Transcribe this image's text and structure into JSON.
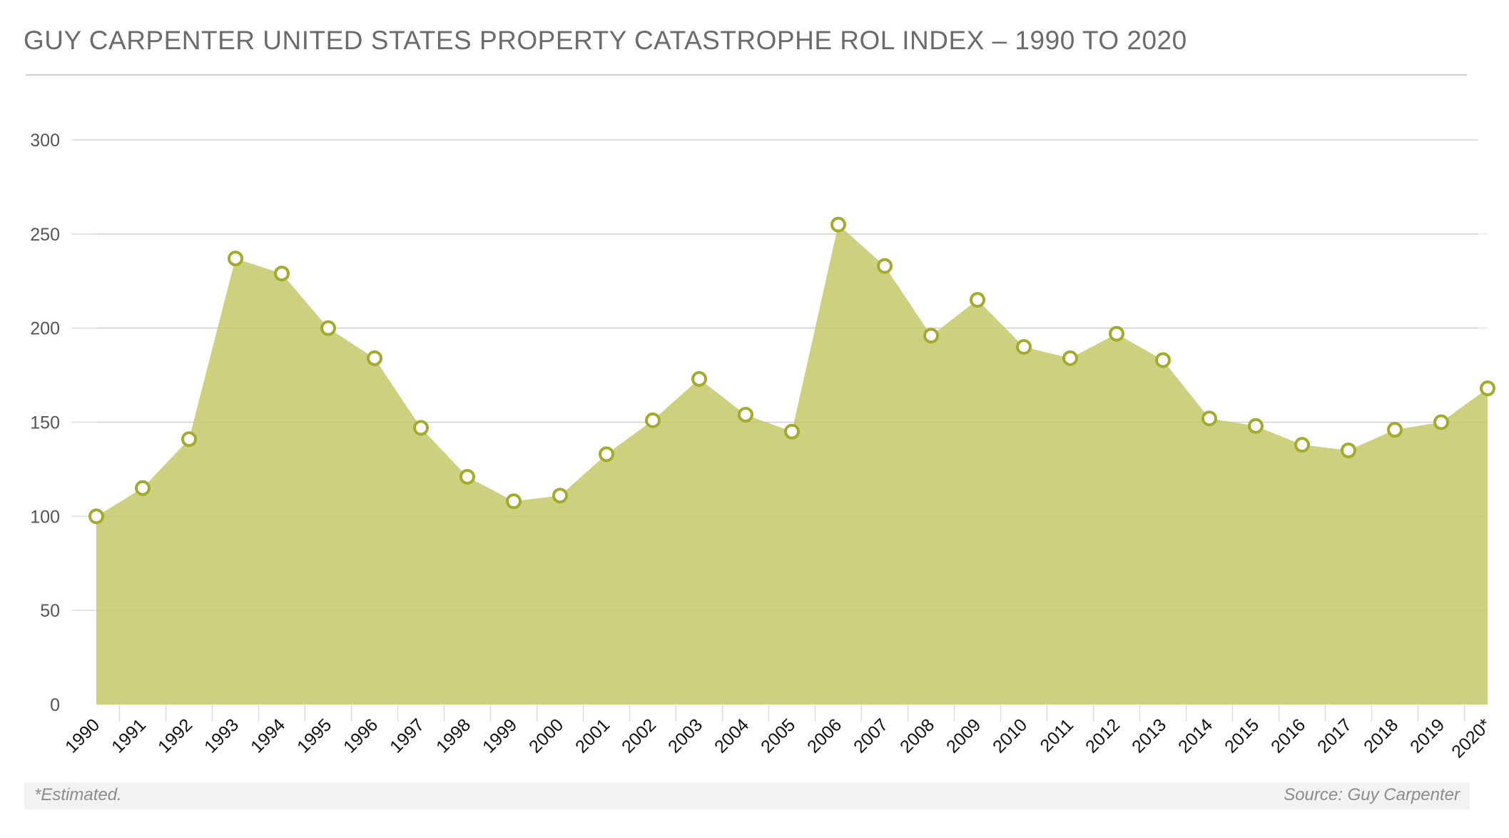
{
  "header": {
    "title": "GUY CARPENTER UNITED STATES PROPERTY CATASTROPHE ROL INDEX – 1990 TO 2020"
  },
  "footer": {
    "note": "*Estimated.",
    "source": "Source: Guy Carpenter"
  },
  "colors": {
    "area_fill": "#cdd17f",
    "marker_stroke": "#a3aa2c",
    "marker_fill": "#ffffff",
    "grid": "#e4e4e4"
  },
  "chart_data": {
    "type": "area",
    "title": "GUY CARPENTER UNITED STATES PROPERTY CATASTROPHE ROL INDEX – 1990 TO 2020",
    "xlabel": "",
    "ylabel": "",
    "ylim": [
      0,
      300
    ],
    "yticks": [
      0,
      50,
      100,
      150,
      200,
      250,
      300
    ],
    "grid": true,
    "categories": [
      "1990",
      "1991",
      "1992",
      "1993",
      "1994",
      "1995",
      "1996",
      "1997",
      "1998",
      "1999",
      "2000",
      "2001",
      "2002",
      "2003",
      "2004",
      "2005",
      "2006",
      "2007",
      "2008",
      "2009",
      "2010",
      "2011",
      "2012",
      "2013",
      "2014",
      "2015",
      "2016",
      "2017",
      "2018",
      "2019",
      "2020*"
    ],
    "series": [
      {
        "values": [
          100,
          115,
          141,
          237,
          229,
          200,
          184,
          147,
          121,
          108,
          111,
          133,
          151,
          173,
          154,
          145,
          255,
          233,
          196,
          215,
          190,
          184,
          197,
          183,
          152,
          148,
          138,
          135,
          146,
          150,
          168
        ]
      }
    ]
  }
}
